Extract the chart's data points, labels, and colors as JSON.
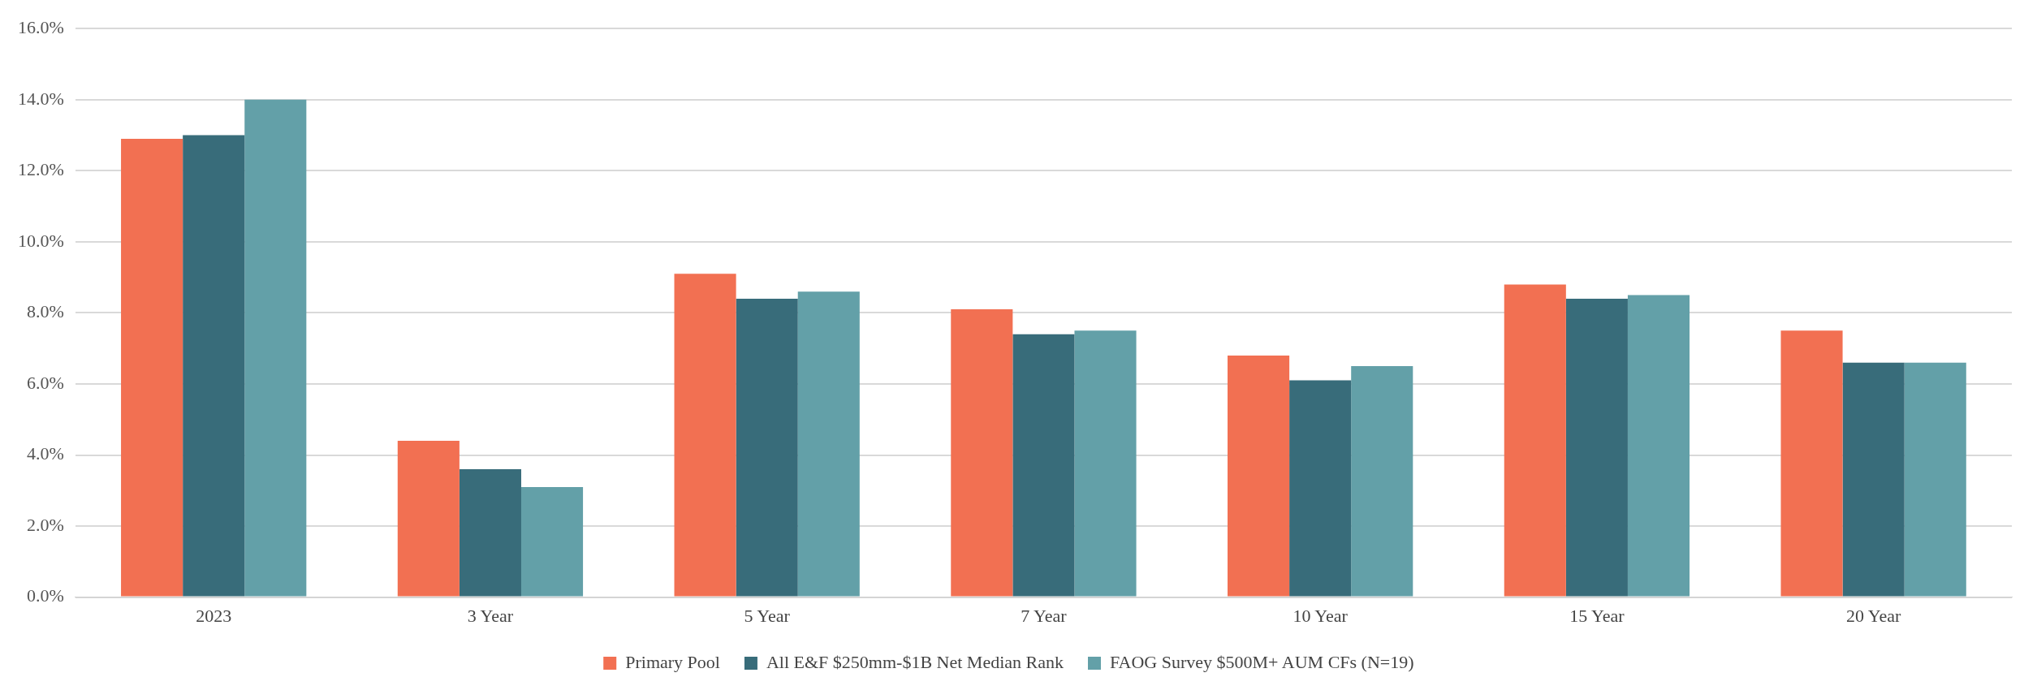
{
  "chart_data": {
    "type": "bar",
    "categories": [
      "2023",
      "3 Year",
      "5 Year",
      "7 Year",
      "10 Year",
      "15 Year",
      "20 Year"
    ],
    "series": [
      {
        "name": "Primary Pool",
        "color": "#f27052",
        "values": [
          12.9,
          4.4,
          9.1,
          8.1,
          6.8,
          8.8,
          7.5
        ]
      },
      {
        "name": "All E&F $250mm-$1B Net Median Rank",
        "color": "#386c7a",
        "values": [
          13.0,
          3.6,
          8.4,
          7.4,
          6.1,
          8.4,
          6.6
        ]
      },
      {
        "name": "FAOG Survey $500M+ AUM CFs (N=19)",
        "color": "#63a0a8",
        "values": [
          14.0,
          3.1,
          8.6,
          7.5,
          6.5,
          8.5,
          6.6
        ]
      }
    ],
    "ylim": [
      0,
      16
    ],
    "yticks": [
      {
        "value": 0,
        "label": "0.0%"
      },
      {
        "value": 2,
        "label": "2.0%"
      },
      {
        "value": 4,
        "label": "4.0%"
      },
      {
        "value": 6,
        "label": "6.0%"
      },
      {
        "value": 8,
        "label": "8.0%"
      },
      {
        "value": 10,
        "label": "10.0%"
      },
      {
        "value": 12,
        "label": "12.0%"
      },
      {
        "value": 14,
        "label": "14.0%"
      },
      {
        "value": 16,
        "label": "16.0%"
      }
    ],
    "grid": "y",
    "legend": "bottom"
  }
}
